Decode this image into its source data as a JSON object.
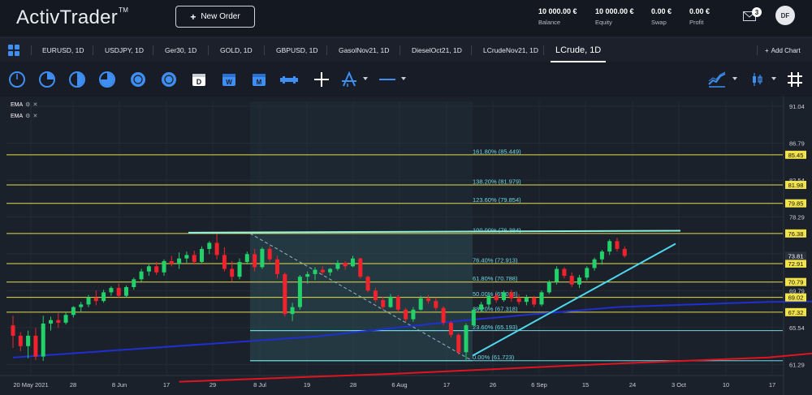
{
  "header": {
    "logo": "ActivTrader",
    "logo_tm": "TM",
    "new_order_label": "New Order",
    "account": [
      {
        "value": "10 000.00 €",
        "label": "Balance"
      },
      {
        "value": "10 000.00 €",
        "label": "Equity"
      },
      {
        "value": "0.00 €",
        "label": "Swap"
      },
      {
        "value": "0.00 €",
        "label": "Profit"
      }
    ],
    "notifications_count": "3",
    "avatar_initials": "DF"
  },
  "tabs": [
    "EURUSD, 1D",
    "USDJPY, 1D",
    "Ger30, 1D",
    "GOLD, 1D",
    "GBPUSD, 1D",
    "GasolNov21, 1D",
    "DieselOct21, 1D",
    "LCrudeNov21, 1D",
    "LCrude, 1D"
  ],
  "active_tab": 8,
  "add_chart_label": "Add Chart",
  "toolbar_icons": [
    "circle-outline-icon",
    "circle-quarter-icon",
    "circle-half-icon",
    "circle-three-quarter-icon",
    "circle-f-icon",
    "circle-o-icon",
    "calendar-d-icon",
    "calendar-w-icon",
    "calendar-m-icon",
    "chart-type-icon",
    "crosshair-icon",
    "fibonacci-tool-icon",
    "line-style-icon"
  ],
  "toolbar_right_icons": [
    "indicators-icon",
    "candle-type-icon",
    "grid-toggle-icon"
  ],
  "chart_legend": [
    "EMA",
    "EMA"
  ],
  "chart_data": {
    "type": "candlestick",
    "instrument": "LCrude",
    "timeframe": "1D",
    "ylim": [
      60.0,
      92.0
    ],
    "y_ticks": [
      "91.04",
      "86.79",
      "82.54",
      "78.29",
      "74.04",
      "69.79",
      "65.54",
      "61.29"
    ],
    "x_ticks": [
      "20 May 2021",
      "28",
      "8 Jun",
      "17",
      "29",
      "8 Jul",
      "19",
      "28",
      "6 Aug",
      "17",
      "26",
      "6 Sep",
      "15",
      "24",
      "3 Oct",
      "10",
      "17"
    ],
    "fib_levels": [
      {
        "label": "161.80% (85.449)",
        "value": 85.449,
        "tag": "85.45"
      },
      {
        "label": "138.20% (81.979)",
        "value": 81.979,
        "tag": "81.98"
      },
      {
        "label": "123.60% (79.854)",
        "value": 79.854,
        "tag": "79.85"
      },
      {
        "label": "100.00% (76.384)",
        "value": 76.384,
        "tag": "76.38"
      },
      {
        "label": "76.40% (72.913)",
        "value": 72.913,
        "tag": "72.91"
      },
      {
        "label": "61.80% (70.788)",
        "value": 70.788,
        "tag": "70.79"
      },
      {
        "label": "50.00% (69.018)",
        "value": 69.018,
        "tag": "69.02"
      },
      {
        "label": "38.20% (67.318)",
        "value": 67.318,
        "tag": "67.32"
      },
      {
        "label": "23.60% (65.193)",
        "value": 65.193,
        "tag": ""
      },
      {
        "label": "0.00% (61.723)",
        "value": 61.723,
        "tag": ""
      }
    ],
    "current_price_tag": "73.81",
    "current_price": 73.81,
    "colors": {
      "up": "#22d16a",
      "down": "#f0232d",
      "fib": "#e5dc4c",
      "ema_fast": "#1f2fd0",
      "ema_slow": "#e0141e",
      "trend": "#4fd8ee",
      "tag_bg": "#f3e34a",
      "price_tag_bg": "#2b323d"
    },
    "ema_fast": [
      [
        0,
        62.1
      ],
      [
        40,
        64.5
      ],
      [
        60,
        66.4
      ],
      [
        80,
        67.9
      ],
      [
        100,
        68.5
      ],
      [
        131,
        68.8
      ]
    ],
    "ema_slow": [
      [
        22,
        59.3
      ],
      [
        50,
        60.2
      ],
      [
        80,
        61.4
      ],
      [
        100,
        62.1
      ],
      [
        110,
        62.9
      ],
      [
        131,
        64.1
      ]
    ],
    "candles": [
      [
        65.8,
        66.9,
        63.2,
        64.6
      ],
      [
        64.6,
        65.0,
        62.8,
        63.4
      ],
      [
        63.4,
        65.2,
        62.0,
        64.6
      ],
      [
        64.6,
        65.5,
        61.8,
        62.2
      ],
      [
        62.2,
        66.9,
        61.7,
        66.0
      ],
      [
        66.0,
        66.8,
        65.2,
        66.4
      ],
      [
        66.4,
        67.2,
        65.5,
        66.1
      ],
      [
        66.1,
        67.3,
        65.9,
        67.0
      ],
      [
        67.0,
        68.0,
        66.7,
        67.9
      ],
      [
        67.9,
        68.5,
        67.3,
        68.2
      ],
      [
        68.2,
        69.3,
        67.9,
        69.0
      ],
      [
        69.0,
        69.8,
        68.1,
        68.6
      ],
      [
        68.6,
        69.9,
        68.4,
        69.6
      ],
      [
        69.6,
        70.3,
        69.2,
        70.1
      ],
      [
        70.1,
        70.6,
        69.0,
        69.2
      ],
      [
        69.2,
        70.4,
        69.0,
        70.2
      ],
      [
        70.2,
        71.3,
        69.9,
        71.1
      ],
      [
        71.1,
        72.3,
        70.8,
        72.0
      ],
      [
        72.0,
        72.8,
        71.5,
        72.6
      ],
      [
        72.6,
        73.1,
        71.6,
        71.9
      ],
      [
        71.9,
        73.4,
        71.5,
        73.2
      ],
      [
        73.2,
        73.8,
        72.6,
        72.9
      ],
      [
        72.9,
        74.2,
        72.3,
        73.5
      ],
      [
        73.5,
        74.3,
        73.0,
        73.9
      ],
      [
        73.9,
        74.4,
        72.8,
        73.1
      ],
      [
        73.1,
        74.9,
        73.0,
        74.6
      ],
      [
        74.6,
        75.5,
        74.0,
        75.3
      ],
      [
        75.3,
        76.3,
        73.4,
        73.9
      ],
      [
        73.9,
        74.8,
        72.0,
        72.3
      ],
      [
        72.3,
        73.2,
        70.8,
        71.4
      ],
      [
        71.4,
        73.5,
        71.1,
        73.1
      ],
      [
        73.1,
        74.3,
        72.8,
        74.0
      ],
      [
        74.0,
        74.6,
        72.0,
        72.5
      ],
      [
        72.5,
        74.8,
        72.3,
        74.6
      ],
      [
        74.6,
        74.9,
        73.1,
        73.4
      ],
      [
        73.4,
        73.8,
        71.2,
        71.7
      ],
      [
        71.7,
        71.9,
        66.8,
        67.1
      ],
      [
        67.1,
        68.4,
        66.3,
        67.9
      ],
      [
        67.9,
        71.6,
        67.6,
        71.4
      ],
      [
        71.4,
        72.0,
        70.6,
        71.7
      ],
      [
        71.7,
        72.5,
        71.0,
        72.2
      ],
      [
        72.2,
        72.6,
        71.6,
        71.9
      ],
      [
        71.9,
        72.4,
        71.5,
        72.3
      ],
      [
        72.3,
        73.3,
        72.1,
        73.0
      ],
      [
        73.0,
        73.2,
        72.2,
        72.6
      ],
      [
        72.6,
        73.8,
        72.5,
        73.5
      ],
      [
        73.5,
        73.6,
        71.2,
        71.4
      ],
      [
        71.4,
        71.5,
        69.6,
        69.8
      ],
      [
        69.8,
        70.1,
        68.4,
        68.7
      ],
      [
        68.7,
        69.1,
        67.6,
        67.9
      ],
      [
        67.9,
        69.4,
        67.8,
        69.1
      ],
      [
        69.1,
        69.3,
        67.3,
        67.6
      ],
      [
        67.6,
        67.8,
        66.2,
        66.5
      ],
      [
        66.5,
        67.9,
        66.2,
        67.6
      ],
      [
        67.6,
        69.2,
        67.5,
        68.9
      ],
      [
        68.9,
        69.3,
        68.3,
        68.6
      ],
      [
        68.6,
        69.0,
        67.5,
        67.8
      ],
      [
        67.8,
        68.0,
        65.8,
        66.1
      ],
      [
        66.1,
        66.3,
        64.4,
        64.7
      ],
      [
        64.7,
        64.9,
        62.4,
        62.7
      ],
      [
        62.7,
        66.0,
        61.7,
        65.8
      ],
      [
        65.8,
        67.8,
        65.6,
        67.6
      ],
      [
        67.6,
        68.5,
        67.3,
        68.2
      ],
      [
        68.2,
        69.4,
        67.9,
        69.2
      ],
      [
        69.2,
        69.5,
        68.4,
        68.7
      ],
      [
        68.7,
        69.8,
        68.5,
        69.6
      ],
      [
        69.6,
        69.9,
        68.5,
        68.9
      ],
      [
        68.9,
        69.4,
        68.2,
        68.5
      ],
      [
        68.5,
        69.3,
        68.1,
        69.0
      ],
      [
        69.0,
        69.2,
        67.9,
        68.2
      ],
      [
        68.2,
        69.8,
        68.0,
        69.6
      ],
      [
        69.6,
        71.0,
        69.4,
        70.8
      ],
      [
        70.8,
        72.6,
        70.5,
        72.3
      ],
      [
        72.3,
        72.5,
        71.2,
        71.5
      ],
      [
        71.5,
        71.9,
        70.2,
        70.5
      ],
      [
        70.5,
        71.6,
        70.1,
        71.3
      ],
      [
        71.3,
        72.6,
        71.0,
        72.4
      ],
      [
        72.4,
        73.6,
        72.1,
        73.4
      ],
      [
        73.4,
        74.5,
        72.8,
        74.3
      ],
      [
        74.3,
        75.7,
        73.9,
        75.5
      ],
      [
        75.5,
        75.9,
        74.3,
        74.6
      ],
      [
        74.6,
        74.9,
        73.6,
        73.8
      ]
    ]
  }
}
